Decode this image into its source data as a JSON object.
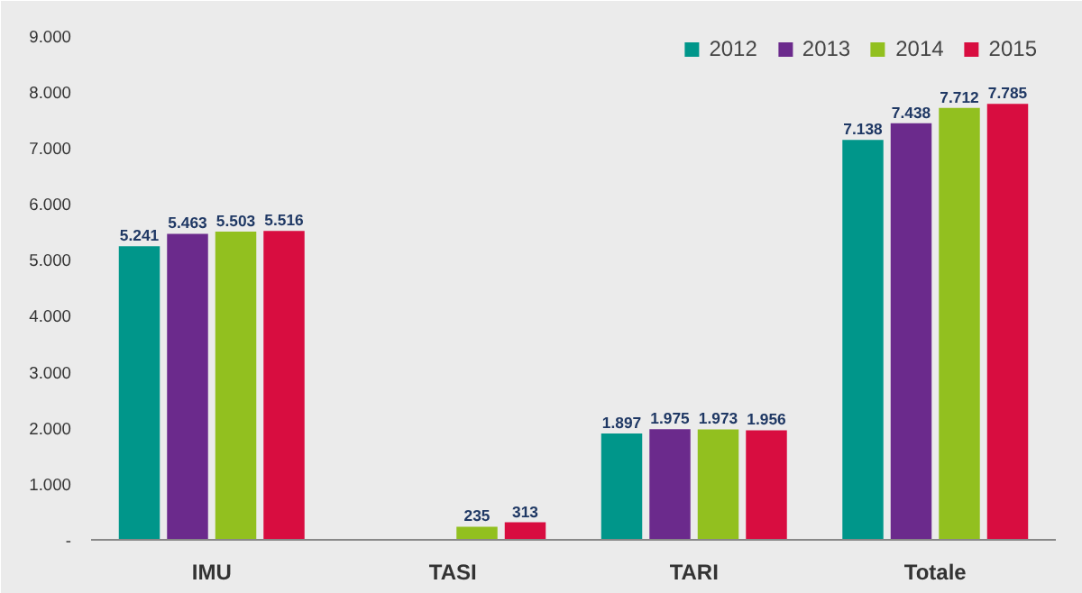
{
  "chart_data": {
    "type": "bar",
    "categories": [
      "IMU",
      "TASI",
      "TARI",
      "Totale"
    ],
    "series": [
      {
        "name": "2012",
        "color": "#00968a",
        "values": [
          5241,
          null,
          1897,
          7138
        ],
        "value_labels": [
          "5.241",
          null,
          "1.897",
          "7.138"
        ]
      },
      {
        "name": "2013",
        "color": "#6b2a8c",
        "values": [
          5463,
          null,
          1975,
          7438
        ],
        "value_labels": [
          "5.463",
          null,
          "1.975",
          "7.438"
        ]
      },
      {
        "name": "2014",
        "color": "#92c01f",
        "values": [
          5503,
          235,
          1973,
          7712
        ],
        "value_labels": [
          "5.503",
          "235",
          "1.973",
          "7.712"
        ]
      },
      {
        "name": "2015",
        "color": "#d80d40",
        "values": [
          5516,
          313,
          1956,
          7785
        ],
        "value_labels": [
          "5.516",
          "313",
          "1.956",
          "7.785"
        ]
      }
    ],
    "ylim": [
      0,
      9300
    ],
    "yticks": [
      {
        "value": 0,
        "label": "-"
      },
      {
        "value": 1000,
        "label": "1.000"
      },
      {
        "value": 2000,
        "label": "2.000"
      },
      {
        "value": 3000,
        "label": "3.000"
      },
      {
        "value": 4000,
        "label": "4.000"
      },
      {
        "value": 5000,
        "label": "5.000"
      },
      {
        "value": 6000,
        "label": "6.000"
      },
      {
        "value": 7000,
        "label": "7.000"
      },
      {
        "value": 8000,
        "label": "8.000"
      },
      {
        "value": 9000,
        "label": "9.000"
      }
    ],
    "grid": false,
    "legend": "top right"
  }
}
